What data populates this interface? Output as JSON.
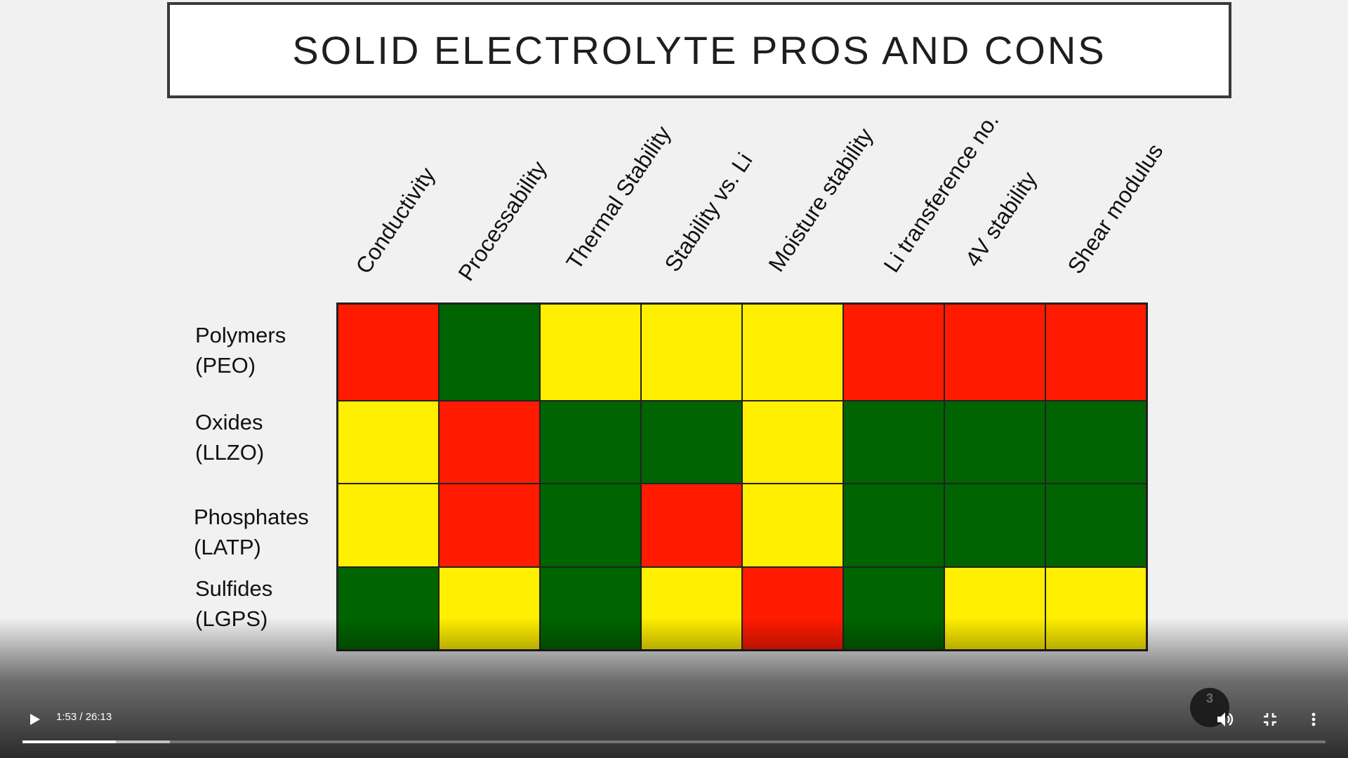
{
  "slide": {
    "title": "SOLID ELECTROLYTE PROS AND CONS",
    "columns": [
      "Conductivity",
      "Processability",
      "Thermal Stability",
      "Stability vs. Li",
      "Moisture stability",
      "Li transference no.",
      "4V stability",
      "Shear modulus"
    ],
    "rows": [
      {
        "line1": "Polymers",
        "line2": "(PEO)"
      },
      {
        "line1": "Oxides",
        "line2": "(LLZO)"
      },
      {
        "line1": "Phosphates",
        "line2": "(LATP)"
      },
      {
        "line1": "Sulfides",
        "line2": "(LGPS)"
      }
    ],
    "ratings": [
      [
        "red",
        "green",
        "yellow",
        "yellow",
        "yellow",
        "red",
        "red",
        "red"
      ],
      [
        "yellow",
        "red",
        "green",
        "green",
        "yellow",
        "green",
        "green",
        "green"
      ],
      [
        "yellow",
        "red",
        "green",
        "red",
        "yellow",
        "green",
        "green",
        "green"
      ],
      [
        "green",
        "yellow",
        "green",
        "yellow",
        "red",
        "green",
        "yellow",
        "yellow"
      ]
    ],
    "colors": {
      "red": "#ff1a00",
      "green": "#006400",
      "yellow": "#ffef00"
    }
  },
  "player": {
    "current_time": "1:53",
    "duration": "26:13",
    "time_display": "1:53 / 26:13",
    "played_fraction": 0.0719,
    "buffered_fraction": 0.113,
    "badge": "3",
    "icons": {
      "play": "play-icon",
      "volume": "volume-icon",
      "exit_fullscreen": "exit-fullscreen-icon",
      "more": "more-vert-icon"
    }
  }
}
